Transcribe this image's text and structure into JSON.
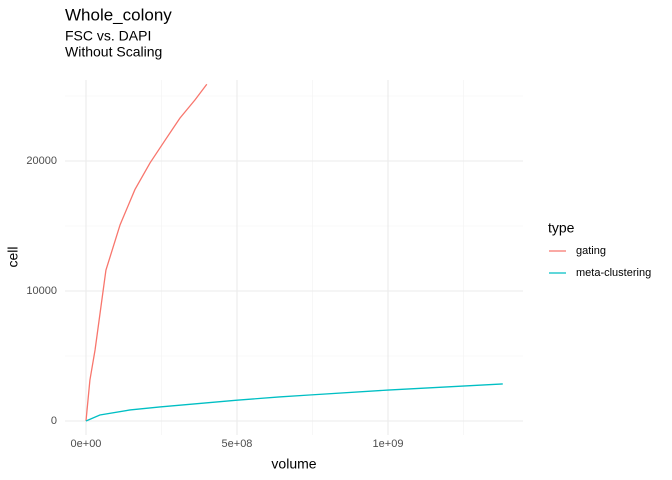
{
  "chart_data": {
    "type": "line",
    "title": "Whole_colony",
    "subtitle": [
      "FSC vs. DAPI",
      "Without Scaling"
    ],
    "x_label": "volume",
    "y_label": "cell",
    "legend_title": "type",
    "legend_position": "right",
    "grid": true,
    "xlim": [
      -69500000,
      1447000000
    ],
    "ylim": [
      -1077,
      26230
    ],
    "xticks": [
      {
        "value": 0,
        "label": "0e+00"
      },
      {
        "value": 500000000,
        "label": "5e+08"
      },
      {
        "value": 1000000000,
        "label": "1e+09"
      }
    ],
    "yticks": [
      0,
      10000,
      20000
    ],
    "x_minor_grid": [
      250000000,
      750000000,
      1250000000
    ],
    "y_minor_grid": [
      5000,
      15000,
      25000
    ],
    "series": [
      {
        "name": "gating",
        "color": "#F8766D",
        "x": [
          0,
          13000000,
          30000000,
          66000000,
          113000000,
          162000000,
          212000000,
          262000000,
          311000000,
          361000000,
          400000000
        ],
        "values": [
          0,
          3150,
          5460,
          11600,
          15100,
          17800,
          19850,
          21600,
          23300,
          24700,
          25900
        ]
      },
      {
        "name": "meta-clustering",
        "color": "#00BFC4",
        "x": [
          0,
          46000000,
          146000000,
          245000000,
          500000000,
          640000000,
          740000000,
          1000000000,
          1380000000
        ],
        "values": [
          0,
          460,
          850,
          1080,
          1600,
          1850,
          2000,
          2380,
          2850
        ]
      }
    ]
  }
}
